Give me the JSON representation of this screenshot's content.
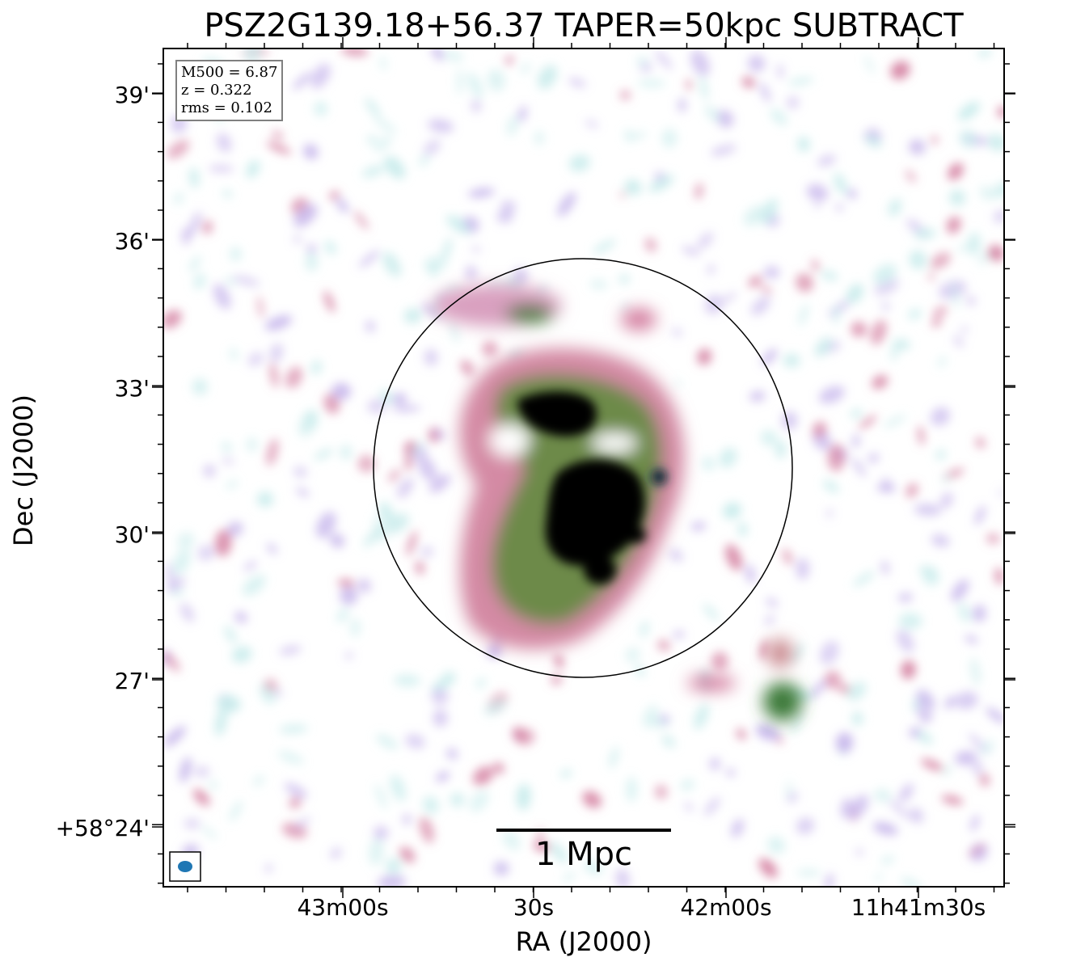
{
  "title": "PSZ2G139.18+56.37 TAPER=50kpc SUBTRACT",
  "axes": {
    "xlabel": "RA (J2000)",
    "ylabel": "Dec (J2000)",
    "xticks": [
      "43m00s",
      "30s",
      "42m00s",
      "11h41m30s"
    ],
    "yticks": [
      "39'",
      "36'",
      "33'",
      "30'",
      "27'",
      "+58°24'"
    ]
  },
  "info": {
    "m500": "M500 = 6.87",
    "z": "z = 0.322",
    "rms": "rms = 0.102"
  },
  "scalebar": {
    "label": "1 Mpc"
  },
  "colors": {
    "faint_emission": "#c9ecec",
    "low_emission": "#c8b8ec",
    "mid_emission": "#d47fa0",
    "high_emission": "#3e7a3a",
    "peak_emission": "#000000",
    "beam": "#1f77b4"
  }
}
